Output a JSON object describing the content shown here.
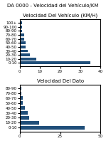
{
  "title": "DA 0000 - Velocidad del Vehículo/KM",
  "chart_data": [
    {
      "type": "bar",
      "orientation": "horizontal",
      "title": "Velocidad Del Vehículo (KM/H)",
      "categories": [
        "0-10",
        "10-20",
        "20-30",
        "30-40",
        "40-50",
        "50-60",
        "60-70",
        "70-80",
        "80-90",
        "90-100",
        "100+"
      ],
      "values": [
        35,
        8,
        5,
        4,
        3,
        3,
        2,
        2,
        1,
        1,
        1
      ],
      "color": "#1f4e79",
      "xlim": [
        0,
        40
      ],
      "xticks": [
        0,
        10,
        20,
        30,
        40
      ],
      "grid": false
    },
    {
      "type": "bar",
      "orientation": "horizontal",
      "title": "Velocidad Del Dato",
      "categories": [
        "0-10",
        "10-20",
        "20-30",
        "30-40",
        "40-50",
        "50-60",
        "60-70",
        "70-80",
        "80-90"
      ],
      "values": [
        40,
        12,
        6,
        5,
        3,
        2,
        2,
        1,
        1
      ],
      "color": "#1f4e79",
      "xlim": [
        0,
        50
      ],
      "xticks": [
        0,
        25,
        50
      ],
      "grid": false
    }
  ]
}
